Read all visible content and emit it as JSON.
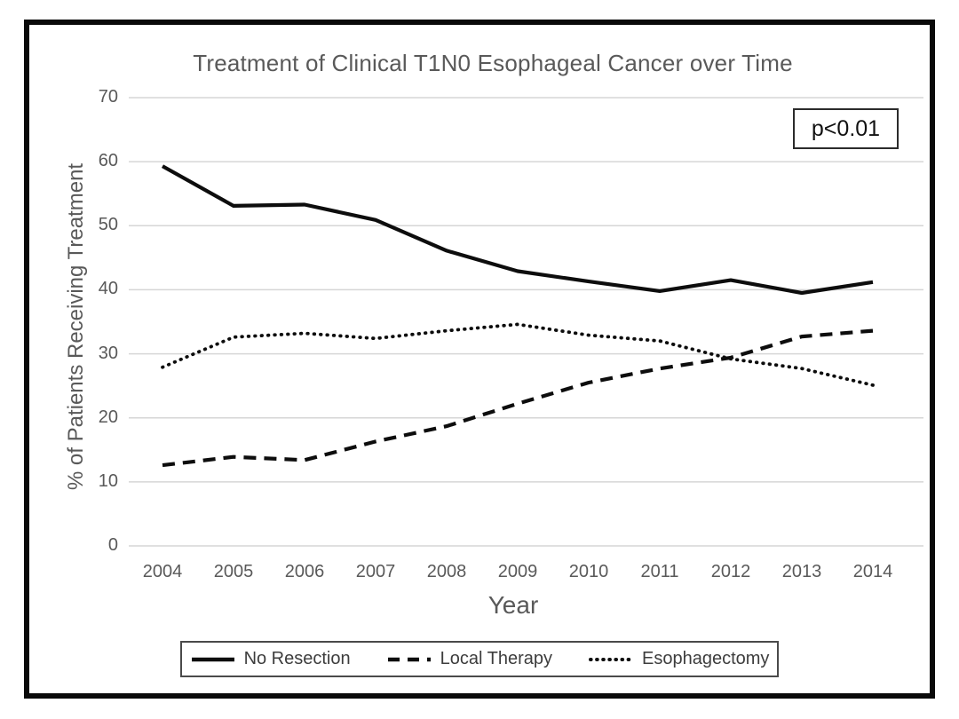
{
  "chart_data": {
    "type": "line",
    "title": "Treatment of Clinical T1N0 Esophageal Cancer over Time",
    "xlabel": "Year",
    "ylabel": "% of Patients Receiving Treatment",
    "annotation": "p<0.01",
    "categories": [
      "2004",
      "2005",
      "2006",
      "2007",
      "2008",
      "2009",
      "2010",
      "2011",
      "2012",
      "2013",
      "2014"
    ],
    "yticks": [
      0,
      10,
      20,
      30,
      40,
      50,
      60,
      70
    ],
    "ylim": [
      0,
      70
    ],
    "grid": true,
    "legend_position": "bottom",
    "series": [
      {
        "name": "No Resection",
        "style": "solid",
        "values": [
          59.3,
          53.1,
          53.3,
          50.9,
          46.1,
          42.9,
          41.3,
          39.8,
          41.5,
          39.5,
          41.2
        ]
      },
      {
        "name": "Local Therapy",
        "style": "dashed",
        "values": [
          12.6,
          13.9,
          13.4,
          16.3,
          18.7,
          22.2,
          25.5,
          27.7,
          29.4,
          32.7,
          33.6
        ]
      },
      {
        "name": "Esophagectomy",
        "style": "dotted",
        "values": [
          27.9,
          32.6,
          33.2,
          32.4,
          33.6,
          34.6,
          32.9,
          32.0,
          29.2,
          27.7,
          25.1
        ]
      }
    ],
    "colors": {
      "line": "#0d0d0d",
      "grid": "#d6d6d6",
      "tick_text": "#595959",
      "frame_border": "#0a0a0a",
      "background": "#ffffff"
    }
  }
}
